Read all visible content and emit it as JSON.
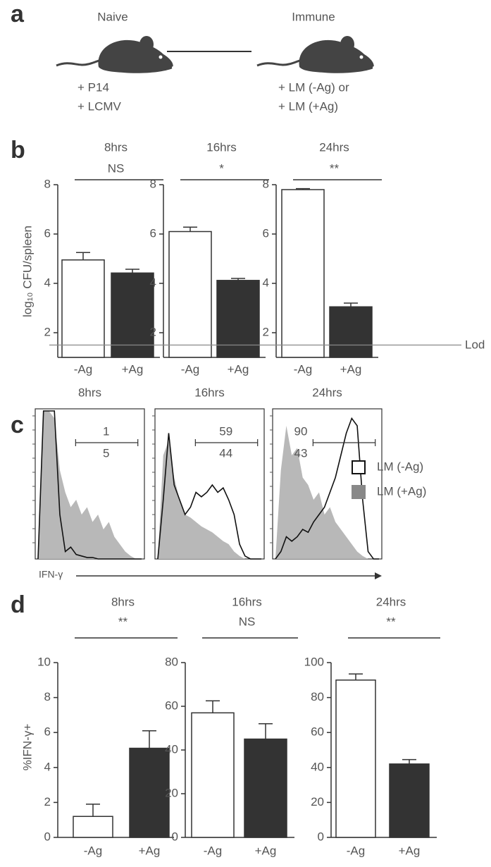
{
  "panels": {
    "a": {
      "label": "a",
      "left_title": "Naive",
      "right_title": "Immune",
      "left_lines": [
        "+ P14",
        "+ LCMV"
      ],
      "right_lines": [
        "+ LM (-Ag) or",
        "+ LM (+Ag)"
      ]
    },
    "b": {
      "label": "b",
      "ylabel": "log₁₀ CFU/spleen",
      "lod": 1.5,
      "lod_label": "Lod"
    },
    "c": {
      "label": "c",
      "xlabel": "IFN-γ"
    },
    "d": {
      "label": "d",
      "ylabel": "%IFN-γ+"
    }
  },
  "chart_data": [
    {
      "type": "bar",
      "title": "8hrs",
      "significance": "NS",
      "categories": [
        "-Ag",
        "+Ag"
      ],
      "values": [
        4.95,
        4.42
      ],
      "errors": [
        0.3,
        0.15
      ],
      "colors": [
        "#ffffff",
        "#333333"
      ],
      "ylim": [
        1,
        8
      ],
      "yticks": [
        2,
        4,
        6,
        8
      ]
    },
    {
      "type": "bar",
      "title": "16hrs",
      "significance": "*",
      "categories": [
        "-Ag",
        "+Ag"
      ],
      "values": [
        6.1,
        4.12
      ],
      "errors": [
        0.18,
        0.08
      ],
      "colors": [
        "#ffffff",
        "#333333"
      ],
      "ylim": [
        1,
        8
      ],
      "yticks": [
        2,
        4,
        6,
        8
      ]
    },
    {
      "type": "bar",
      "title": "24hrs",
      "significance": "**",
      "categories": [
        "-Ag",
        "+Ag"
      ],
      "values": [
        7.8,
        3.05
      ],
      "errors": [
        0.04,
        0.15
      ],
      "colors": [
        "#ffffff",
        "#333333"
      ],
      "ylim": [
        1,
        8
      ],
      "yticks": [
        2,
        4,
        6,
        8
      ]
    },
    {
      "type": "histogram",
      "title": "8hrs",
      "gate_labels": [
        "1",
        "5"
      ],
      "ylim": [
        0,
        100
      ],
      "series": [
        {
          "name": "LM (-Ag)",
          "color": "#111111",
          "values": [
            0,
            100,
            100,
            100,
            30,
            5,
            8,
            3,
            2,
            1,
            1,
            0,
            0,
            0,
            0,
            0,
            0,
            0,
            0,
            0
          ]
        },
        {
          "name": "LM (+Ag)",
          "color": "#b8b8b8",
          "values": [
            0,
            100,
            100,
            95,
            60,
            45,
            35,
            40,
            30,
            35,
            25,
            30,
            20,
            25,
            15,
            10,
            5,
            2,
            0,
            0
          ]
        }
      ]
    },
    {
      "type": "histogram",
      "title": "16hrs",
      "gate_labels": [
        "59",
        "44"
      ],
      "ylim": [
        0,
        100
      ],
      "series": [
        {
          "name": "LM (-Ag)",
          "color": "#111111",
          "values": [
            0,
            40,
            85,
            50,
            40,
            30,
            35,
            45,
            42,
            45,
            50,
            45,
            48,
            40,
            30,
            10,
            2,
            0,
            0,
            0
          ]
        },
        {
          "name": "LM (+Ag)",
          "color": "#b8b8b8",
          "values": [
            0,
            70,
            80,
            55,
            40,
            30,
            28,
            25,
            22,
            20,
            18,
            15,
            12,
            10,
            5,
            2,
            0,
            0,
            0,
            0
          ]
        }
      ]
    },
    {
      "type": "histogram",
      "title": "24hrs",
      "gate_labels": [
        "90",
        "43"
      ],
      "ylim": [
        0,
        100
      ],
      "series": [
        {
          "name": "LM (-Ag)",
          "color": "#111111",
          "values": [
            0,
            5,
            15,
            12,
            15,
            20,
            18,
            25,
            30,
            35,
            45,
            55,
            70,
            85,
            95,
            90,
            40,
            5,
            0,
            0
          ]
        },
        {
          "name": "LM (+Ag)",
          "color": "#b8b8b8",
          "values": [
            0,
            60,
            90,
            70,
            75,
            55,
            50,
            40,
            45,
            30,
            35,
            25,
            20,
            15,
            10,
            5,
            2,
            0,
            0,
            0
          ]
        }
      ]
    },
    {
      "type": "bar",
      "title": "8hrs",
      "significance": "**",
      "categories": [
        "-Ag",
        "+Ag"
      ],
      "values": [
        1.2,
        5.1
      ],
      "errors": [
        0.7,
        1.0
      ],
      "colors": [
        "#ffffff",
        "#333333"
      ],
      "ylim": [
        0,
        10
      ],
      "yticks": [
        0,
        2,
        4,
        6,
        8,
        10
      ]
    },
    {
      "type": "bar",
      "title": "16hrs",
      "significance": "NS",
      "categories": [
        "-Ag",
        "+Ag"
      ],
      "values": [
        57,
        45
      ],
      "errors": [
        5.5,
        7
      ],
      "colors": [
        "#ffffff",
        "#333333"
      ],
      "ylim": [
        0,
        80
      ],
      "yticks": [
        0,
        20,
        40,
        60,
        80
      ]
    },
    {
      "type": "bar",
      "title": "24hrs",
      "significance": "**",
      "categories": [
        "-Ag",
        "+Ag"
      ],
      "values": [
        90,
        42
      ],
      "errors": [
        3.5,
        2.5
      ],
      "colors": [
        "#ffffff",
        "#333333"
      ],
      "ylim": [
        0,
        100
      ],
      "yticks": [
        0,
        20,
        40,
        60,
        80,
        100
      ]
    }
  ]
}
